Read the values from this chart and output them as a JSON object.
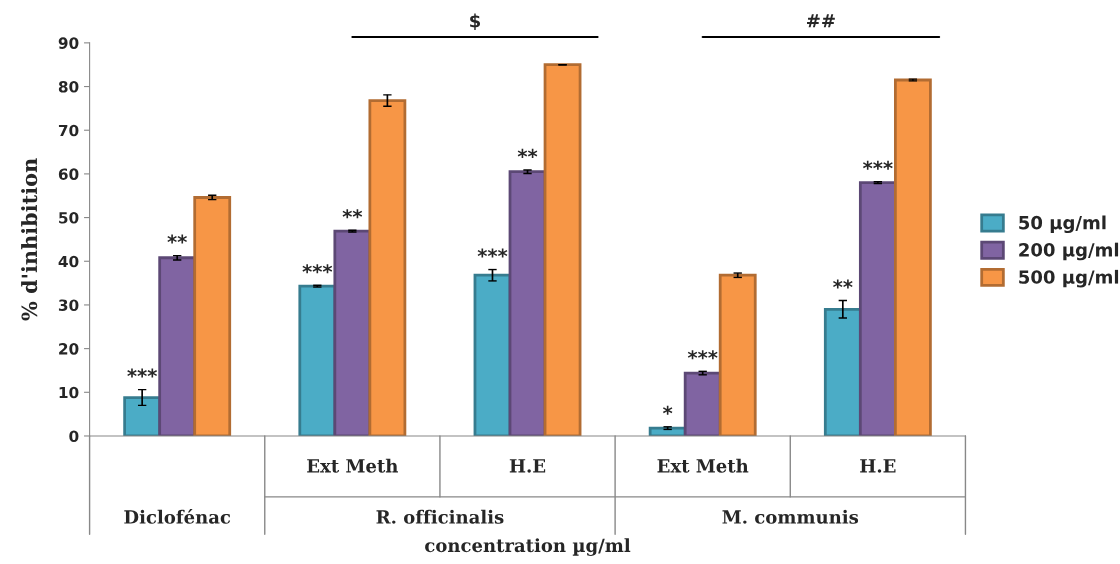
{
  "chart_data": {
    "type": "bar",
    "categories": [
      null,
      "Ext Meth",
      "H.E",
      "Ext Meth",
      "H.E"
    ],
    "series": [
      {
        "name": "50 µg/ml",
        "color": "#4bacc6",
        "values": [
          8.8,
          34.3,
          36.8,
          1.8,
          29
        ],
        "errors": [
          1.8,
          0.2,
          1.3,
          0.3,
          2
        ],
        "value_labels": [
          "***",
          "***",
          "***",
          "*",
          "**"
        ]
      },
      {
        "name": "200 µg/ml",
        "color": "#8064a2",
        "values": [
          40.8,
          46.9,
          60.5,
          14.4,
          58
        ],
        "errors": [
          0.5,
          0.2,
          0.4,
          0.4,
          0.2
        ],
        "value_labels": [
          "**",
          "**",
          "**",
          "***",
          "***"
        ]
      },
      {
        "name": "500 µg/ml",
        "color": "#f79646",
        "values": [
          54.6,
          76.8,
          85,
          36.8,
          81.5
        ],
        "errors": [
          0.5,
          1.3,
          0,
          0.5,
          0.2
        ]
      }
    ],
    "xlabel": "concentration µg/ml",
    "ylabel": "% d'inhibition",
    "ylim": [
      0,
      90
    ],
    "yticks": [
      0,
      10,
      20,
      30,
      40,
      50,
      60,
      70,
      80,
      90
    ],
    "annotations": [
      "$",
      "##",
      "Diclofénac",
      "R. officinalis",
      "M. communis"
    ],
    "legend": "right",
    "grid": false
  }
}
